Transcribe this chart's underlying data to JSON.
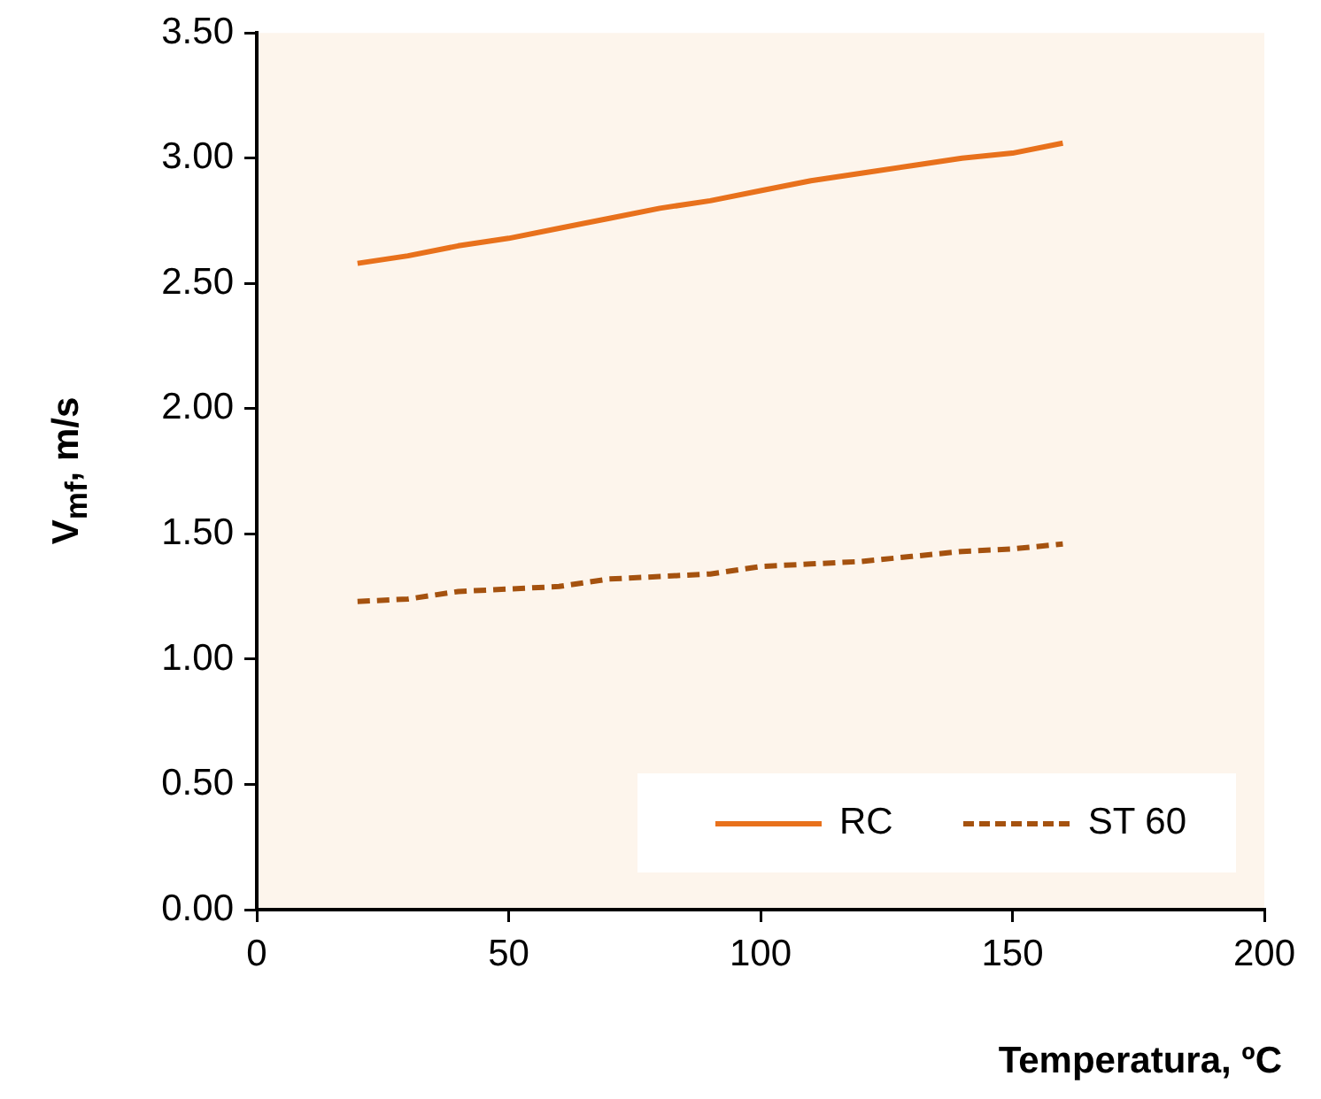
{
  "chart_data": {
    "type": "line",
    "xlabel": "Temperatura, ºC",
    "ylabel": "V$_{mf}$, m/s",
    "x": [
      20,
      30,
      40,
      50,
      60,
      70,
      80,
      90,
      100,
      110,
      120,
      130,
      140,
      150,
      160
    ],
    "xlim": [
      0,
      200
    ],
    "xticks": [
      0,
      50,
      100,
      150,
      200
    ],
    "ylim": [
      0,
      3.5
    ],
    "yticks": [
      {
        "value": 0,
        "label": "0.00"
      },
      {
        "value": 0.5,
        "label": "0.50"
      },
      {
        "value": 1,
        "label": "1.00"
      },
      {
        "value": 1.5,
        "label": "1.50"
      },
      {
        "value": 2,
        "label": "2.00"
      },
      {
        "value": 2.5,
        "label": "2.50"
      },
      {
        "value": 3,
        "label": "3.00"
      },
      {
        "value": 3.5,
        "label": "3.50"
      }
    ],
    "grid": false,
    "legend": "bottom right",
    "marker": "none",
    "series": [
      {
        "name": "RC",
        "color": "#e8711c",
        "line_style": "solid",
        "values": [
          2.58,
          2.61,
          2.65,
          2.68,
          2.72,
          2.76,
          2.8,
          2.83,
          2.87,
          2.91,
          2.94,
          2.97,
          3.0,
          3.02,
          3.06
        ]
      },
      {
        "name": "ST 60",
        "color": "#a5520f",
        "line_style": "dashed",
        "values": [
          1.23,
          1.24,
          1.27,
          1.28,
          1.29,
          1.32,
          1.33,
          1.34,
          1.37,
          1.38,
          1.39,
          1.41,
          1.43,
          1.44,
          1.46
        ]
      }
    ]
  }
}
